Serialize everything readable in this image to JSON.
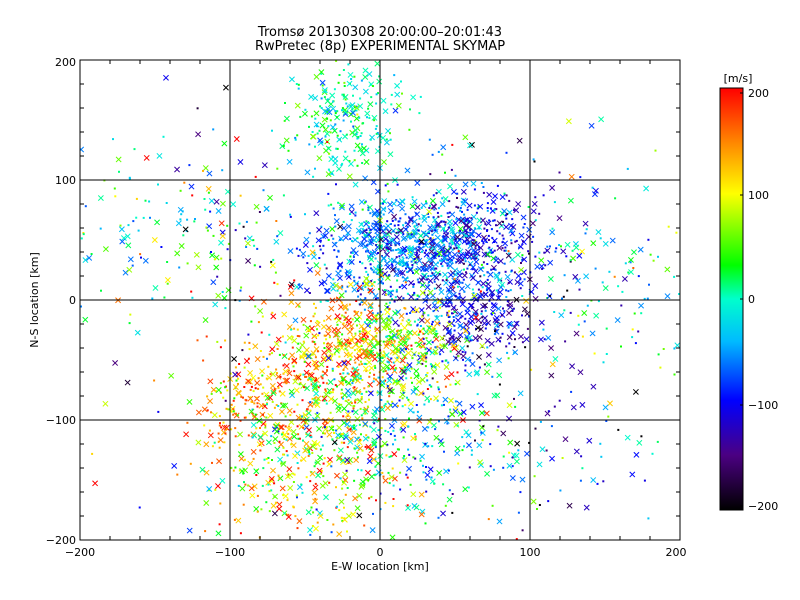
{
  "chart_data": {
    "type": "scatter",
    "title": "Tromsø 20130308 20:00:00–20:01:43",
    "subtitle": "RwPretec (8p) EXPERIMENTAL SKYMAP",
    "xlabel": "E-W location [km]",
    "ylabel": "N-S location [km]",
    "xlim": [
      -200,
      200
    ],
    "ylim": [
      -200,
      200
    ],
    "xticks": [
      "−200",
      "−100",
      "0",
      "100",
      "200"
    ],
    "yticks": [
      "−200",
      "−100",
      "0",
      "100",
      "200"
    ],
    "grid": true,
    "grid_lines": [
      -100,
      0,
      100
    ],
    "markers": [
      "x",
      "dot"
    ],
    "colorbar": {
      "label": "[m/s]",
      "range": [
        -200,
        200
      ],
      "ticks": [
        "200",
        "100",
        "0",
        "−100",
        "−200"
      ],
      "colors": [
        "#000000",
        "#4b0082",
        "#0000ff",
        "#00ffff",
        "#00ff00",
        "#ffff00",
        "#ff8800",
        "#ff0000"
      ]
    },
    "clusters": [
      {
        "x": 20,
        "y": 40,
        "sx": 35,
        "sy": 25,
        "n": 900,
        "v": -60,
        "vs": 45
      },
      {
        "x": -25,
        "y": 150,
        "sx": 20,
        "sy": 30,
        "n": 260,
        "v": 10,
        "vs": 35
      },
      {
        "x": 70,
        "y": 40,
        "sx": 22,
        "sy": 30,
        "n": 220,
        "v": -110,
        "vs": 30
      },
      {
        "x": 60,
        "y": -20,
        "sx": 22,
        "sy": 18,
        "n": 220,
        "v": -110,
        "vs": 35
      },
      {
        "x": -25,
        "y": -45,
        "sx": 28,
        "sy": 25,
        "n": 450,
        "v": 130,
        "vs": 50
      },
      {
        "x": 15,
        "y": -40,
        "sx": 20,
        "sy": 22,
        "n": 220,
        "v": 60,
        "vs": 45
      },
      {
        "x": -85,
        "y": -95,
        "sx": 22,
        "sy": 25,
        "n": 160,
        "v": 150,
        "vs": 45
      },
      {
        "x": -40,
        "y": -110,
        "sx": 35,
        "sy": 35,
        "n": 380,
        "v": 60,
        "vs": 70
      },
      {
        "x": 30,
        "y": -110,
        "sx": 40,
        "sy": 40,
        "n": 260,
        "v": -20,
        "vs": 60
      },
      {
        "x": -50,
        "y": -160,
        "sx": 35,
        "sy": 25,
        "n": 120,
        "v": 120,
        "vs": 60
      },
      {
        "x": -150,
        "y": 60,
        "sx": 40,
        "sy": 30,
        "n": 90,
        "v": -10,
        "vs": 60
      },
      {
        "x": 150,
        "y": 10,
        "sx": 35,
        "sy": 40,
        "n": 110,
        "v": -10,
        "vs": 70
      },
      {
        "x": -110,
        "y": 40,
        "sx": 30,
        "sy": 40,
        "n": 70,
        "v": 20,
        "vs": 80
      },
      {
        "x": 120,
        "y": -120,
        "sx": 30,
        "sy": 40,
        "n": 60,
        "v": -120,
        "vs": 60
      },
      {
        "x": 0,
        "y": 0,
        "sx": 130,
        "sy": 120,
        "n": 200,
        "v": 0,
        "vs": 110
      }
    ]
  }
}
